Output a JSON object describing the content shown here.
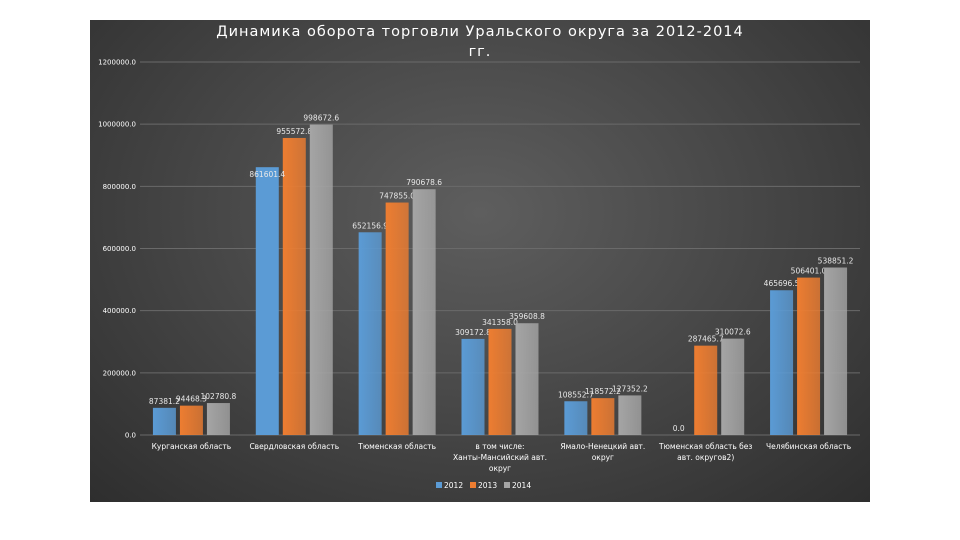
{
  "chart_data": {
    "type": "bar",
    "title": "Динамика оборота торговли Уральского округа за 2012-2014 гг.",
    "categories": [
      "Курганская область",
      "Свердловская область",
      "Тюменская область",
      "в том числе: Ханты-Мансийский авт. округ",
      "Ямало-Ненецкий авт. округ",
      "Тюменская область без авт. округов2)",
      "Челябинская область"
    ],
    "category_lines": [
      [
        "Курганская область"
      ],
      [
        "Свердловская область"
      ],
      [
        "Тюменская область"
      ],
      [
        "в том числе:",
        "Ханты-Мансийский авт.",
        "округ"
      ],
      [
        "Ямало-Ненецкий авт.",
        "округ"
      ],
      [
        "Тюменская область без",
        "авт. округов2)"
      ],
      [
        "Челябинская область"
      ]
    ],
    "series": [
      {
        "name": "2012",
        "color": "#5b9bd5",
        "values": [
          87381.2,
          null,
          652156.9,
          309172.8,
          108552.7,
          0.0,
          465696.5
        ],
        "labels": [
          "87381.2",
          "",
          "652156.9",
          "309172.8",
          "108552.7",
          "0.0",
          "465696.5"
        ]
      },
      {
        "name": "2013",
        "color": "#ed7d31",
        "values": [
          94468.3,
          955572.8,
          747855.0,
          341358.0,
          118572.2,
          287465.7,
          506401.0
        ],
        "labels": [
          "94468.3",
          "955572.8",
          "747855.0",
          "341358.0",
          "118572.2",
          "287465.7",
          "506401.0"
        ]
      },
      {
        "name": "2014",
        "color": "#a5a5a5",
        "values": [
          102780.8,
          998672.6,
          790678.6,
          359608.8,
          127352.2,
          310072.6,
          538851.2
        ],
        "labels": [
          "102780.8",
          "998672.6",
          "790678.6",
          "359608.8",
          "127352.2",
          "310072.6",
          "538851.2"
        ]
      }
    ],
    "extra_labels": [
      {
        "text": "861601.4",
        "category": 1,
        "series": 0,
        "value": 861601.4
      }
    ],
    "ylim": [
      0,
      1200000
    ],
    "yticks": [
      0,
      200000,
      400000,
      600000,
      800000,
      1000000,
      1200000
    ],
    "ytick_labels": [
      "0.0",
      "200000.0",
      "400000.0",
      "600000.0",
      "800000.0",
      "1000000.0",
      "1200000.0"
    ],
    "grid": true,
    "legend": "bottom",
    "legend_entries": [
      "2012",
      "2013",
      "2014"
    ]
  }
}
